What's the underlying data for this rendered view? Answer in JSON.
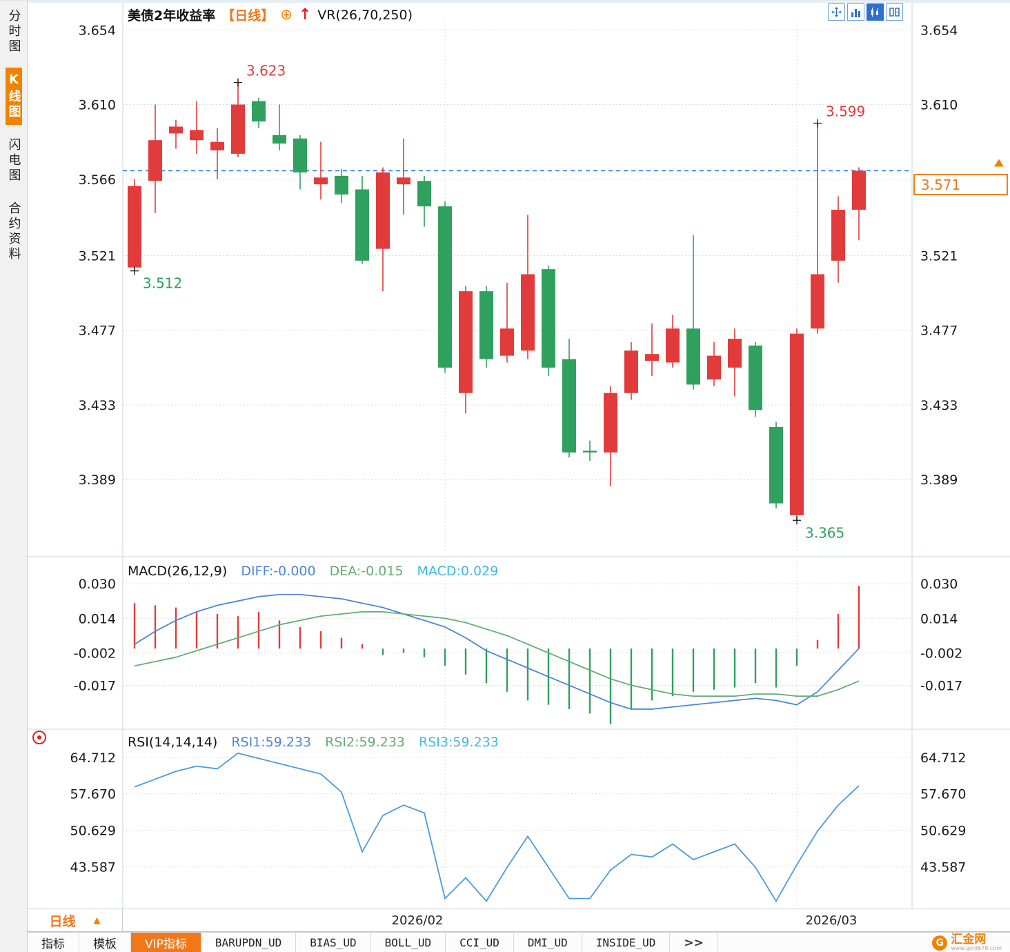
{
  "sidebar": {
    "items": [
      {
        "label": "分时图",
        "active": false
      },
      {
        "label": "K线图",
        "active": true
      },
      {
        "label": "闪电图",
        "active": false
      },
      {
        "label": "合约资料",
        "active": false
      }
    ]
  },
  "titlebar": {
    "title": "美债2年收益率",
    "period_tag": "【日线】",
    "add_icon": "⊕",
    "arrow_icon": "↑",
    "indicator": "VR(26,70,250)"
  },
  "price_tag": "3.571",
  "macd_header": {
    "name": "MACD(26,12,9)",
    "diff": "DIFF:-0.000",
    "dea": "DEA:-0.015",
    "macd": "MACD:0.029"
  },
  "rsi_header": {
    "name": "RSI(14,14,14)",
    "rsi1": "RSI1:59.233",
    "rsi2": "RSI2:59.233",
    "rsi3": "RSI3:59.233"
  },
  "xaxis": {
    "period_label": "日线",
    "period_tri": "▲",
    "labels": [
      "2026/02",
      "2026/03"
    ]
  },
  "bottom_tabs": [
    {
      "label": "指标"
    },
    {
      "label": "模板"
    },
    {
      "label": "VIP指标",
      "active": true
    },
    {
      "label": "BARUPDN_UD"
    },
    {
      "label": "BIAS_UD"
    },
    {
      "label": "BOLL_UD"
    },
    {
      "label": "CCI_UD"
    },
    {
      "label": "DMI_UD"
    },
    {
      "label": "INSIDE_UD"
    },
    {
      "label": ">>"
    }
  ],
  "logo": {
    "badge": "G",
    "text": "汇金网",
    "url": "www.gold678.com"
  },
  "colors": {
    "up": "#e23b3b",
    "down": "#2fa05e",
    "diff": "#4a86d8",
    "dea": "#5fae72",
    "rsi_line": "#4a9ade",
    "accent_orange": "#f08200",
    "dashed_line": "#2e7ff2",
    "grid": "#dcdcdc",
    "frame": "#c9d6e4",
    "tick_text": "#1a1a1a"
  },
  "chart_data": [
    {
      "type": "candlestick",
      "title": "美债2年收益率 日线",
      "ylim": [
        3.346,
        3.659
      ],
      "yticks": [
        3.654,
        3.61,
        3.566,
        3.521,
        3.477,
        3.433,
        3.389
      ],
      "current_price": 3.571,
      "x_labels": [
        {
          "label": "2026/02",
          "index": 15
        },
        {
          "label": "2026/03",
          "index": 32
        }
      ],
      "annotations": [
        {
          "label": "3.623",
          "index": 5,
          "price": 3.623,
          "side": "high"
        },
        {
          "label": "3.512",
          "index": 0,
          "price": 3.512,
          "side": "low"
        },
        {
          "label": "3.599",
          "index": 33,
          "price": 3.599,
          "side": "high"
        },
        {
          "label": "3.365",
          "index": 32,
          "price": 3.365,
          "side": "low"
        }
      ],
      "candles": [
        {
          "o": 3.514,
          "h": 3.566,
          "l": 3.512,
          "c": 3.562
        },
        {
          "o": 3.565,
          "h": 3.61,
          "l": 3.546,
          "c": 3.589
        },
        {
          "o": 3.593,
          "h": 3.601,
          "l": 3.584,
          "c": 3.597
        },
        {
          "o": 3.589,
          "h": 3.612,
          "l": 3.581,
          "c": 3.595
        },
        {
          "o": 3.583,
          "h": 3.596,
          "l": 3.566,
          "c": 3.588
        },
        {
          "o": 3.581,
          "h": 3.623,
          "l": 3.579,
          "c": 3.61
        },
        {
          "o": 3.612,
          "h": 3.614,
          "l": 3.596,
          "c": 3.6
        },
        {
          "o": 3.592,
          "h": 3.61,
          "l": 3.583,
          "c": 3.587
        },
        {
          "o": 3.59,
          "h": 3.592,
          "l": 3.56,
          "c": 3.57
        },
        {
          "o": 3.563,
          "h": 3.588,
          "l": 3.554,
          "c": 3.567
        },
        {
          "o": 3.568,
          "h": 3.572,
          "l": 3.552,
          "c": 3.557
        },
        {
          "o": 3.56,
          "h": 3.568,
          "l": 3.516,
          "c": 3.518
        },
        {
          "o": 3.525,
          "h": 3.573,
          "l": 3.5,
          "c": 3.57
        },
        {
          "o": 3.563,
          "h": 3.59,
          "l": 3.545,
          "c": 3.567
        },
        {
          "o": 3.565,
          "h": 3.568,
          "l": 3.538,
          "c": 3.55
        },
        {
          "o": 3.55,
          "h": 3.553,
          "l": 3.452,
          "c": 3.455
        },
        {
          "o": 3.44,
          "h": 3.503,
          "l": 3.428,
          "c": 3.5
        },
        {
          "o": 3.5,
          "h": 3.503,
          "l": 3.455,
          "c": 3.46
        },
        {
          "o": 3.462,
          "h": 3.505,
          "l": 3.458,
          "c": 3.478
        },
        {
          "o": 3.465,
          "h": 3.545,
          "l": 3.46,
          "c": 3.51
        },
        {
          "o": 3.513,
          "h": 3.515,
          "l": 3.45,
          "c": 3.455
        },
        {
          "o": 3.46,
          "h": 3.472,
          "l": 3.402,
          "c": 3.405
        },
        {
          "o": 3.406,
          "h": 3.412,
          "l": 3.4,
          "c": 3.405
        },
        {
          "o": 3.405,
          "h": 3.444,
          "l": 3.385,
          "c": 3.44
        },
        {
          "o": 3.44,
          "h": 3.47,
          "l": 3.436,
          "c": 3.465
        },
        {
          "o": 3.459,
          "h": 3.481,
          "l": 3.45,
          "c": 3.463
        },
        {
          "o": 3.458,
          "h": 3.486,
          "l": 3.455,
          "c": 3.478
        },
        {
          "o": 3.478,
          "h": 3.533,
          "l": 3.442,
          "c": 3.445
        },
        {
          "o": 3.448,
          "h": 3.47,
          "l": 3.444,
          "c": 3.462
        },
        {
          "o": 3.455,
          "h": 3.478,
          "l": 3.438,
          "c": 3.472
        },
        {
          "o": 3.468,
          "h": 3.47,
          "l": 3.426,
          "c": 3.43
        },
        {
          "o": 3.42,
          "h": 3.423,
          "l": 3.372,
          "c": 3.375
        },
        {
          "o": 3.368,
          "h": 3.478,
          "l": 3.365,
          "c": 3.475
        },
        {
          "o": 3.478,
          "h": 3.599,
          "l": 3.475,
          "c": 3.51
        },
        {
          "o": 3.518,
          "h": 3.556,
          "l": 3.505,
          "c": 3.548
        },
        {
          "o": 3.548,
          "h": 3.573,
          "l": 3.53,
          "c": 3.571
        }
      ]
    },
    {
      "type": "macd",
      "name": "MACD(26,12,9)",
      "ylim": [
        -0.036,
        0.0412
      ],
      "yticks": [
        0.03,
        0.014,
        -0.002,
        -0.017
      ],
      "values": {
        "diff": -0.0,
        "dea": -0.015,
        "macd": 0.029
      },
      "hist": [
        0.021,
        0.02,
        0.019,
        0.017,
        0.016,
        0.015,
        0.017,
        0.013,
        0.01,
        0.008,
        0.005,
        0.002,
        -0.003,
        -0.002,
        -0.004,
        -0.008,
        -0.012,
        -0.016,
        -0.02,
        -0.024,
        -0.026,
        -0.028,
        -0.03,
        -0.035,
        -0.028,
        -0.024,
        -0.022,
        -0.02,
        -0.019,
        -0.018,
        -0.016,
        -0.018,
        -0.008,
        0.004,
        0.016,
        0.029
      ],
      "diff": [
        0.002,
        0.008,
        0.013,
        0.017,
        0.02,
        0.022,
        0.024,
        0.025,
        0.025,
        0.024,
        0.023,
        0.021,
        0.019,
        0.016,
        0.013,
        0.01,
        0.005,
        -0.001,
        -0.005,
        -0.009,
        -0.013,
        -0.017,
        -0.021,
        -0.025,
        -0.028,
        -0.028,
        -0.027,
        -0.026,
        -0.025,
        -0.024,
        -0.023,
        -0.024,
        -0.026,
        -0.02,
        -0.01,
        0.0
      ],
      "dea": [
        -0.008,
        -0.006,
        -0.004,
        -0.001,
        0.002,
        0.005,
        0.008,
        0.011,
        0.013,
        0.015,
        0.016,
        0.017,
        0.017,
        0.016,
        0.015,
        0.014,
        0.012,
        0.009,
        0.006,
        0.002,
        -0.002,
        -0.006,
        -0.01,
        -0.014,
        -0.017,
        -0.019,
        -0.021,
        -0.022,
        -0.022,
        -0.022,
        -0.021,
        -0.021,
        -0.022,
        -0.022,
        -0.019,
        -0.015
      ]
    },
    {
      "type": "rsi",
      "name": "RSI(14,14,14)",
      "ylim": [
        36.1,
        69.6
      ],
      "yticks": [
        64.712,
        57.67,
        50.629,
        43.587
      ],
      "values": {
        "rsi1": 59.233,
        "rsi2": 59.233,
        "rsi3": 59.233
      },
      "rsi": [
        59.0,
        60.5,
        62.0,
        63.0,
        62.5,
        65.5,
        64.5,
        63.5,
        62.5,
        61.5,
        58.0,
        46.5,
        53.5,
        55.5,
        54.0,
        37.5,
        41.5,
        37.0,
        43.5,
        49.5,
        43.5,
        37.5,
        37.5,
        43.0,
        46.0,
        45.5,
        48.0,
        45.0,
        46.5,
        48.0,
        43.5,
        37.0,
        44.0,
        50.5,
        55.5,
        59.233
      ]
    }
  ]
}
